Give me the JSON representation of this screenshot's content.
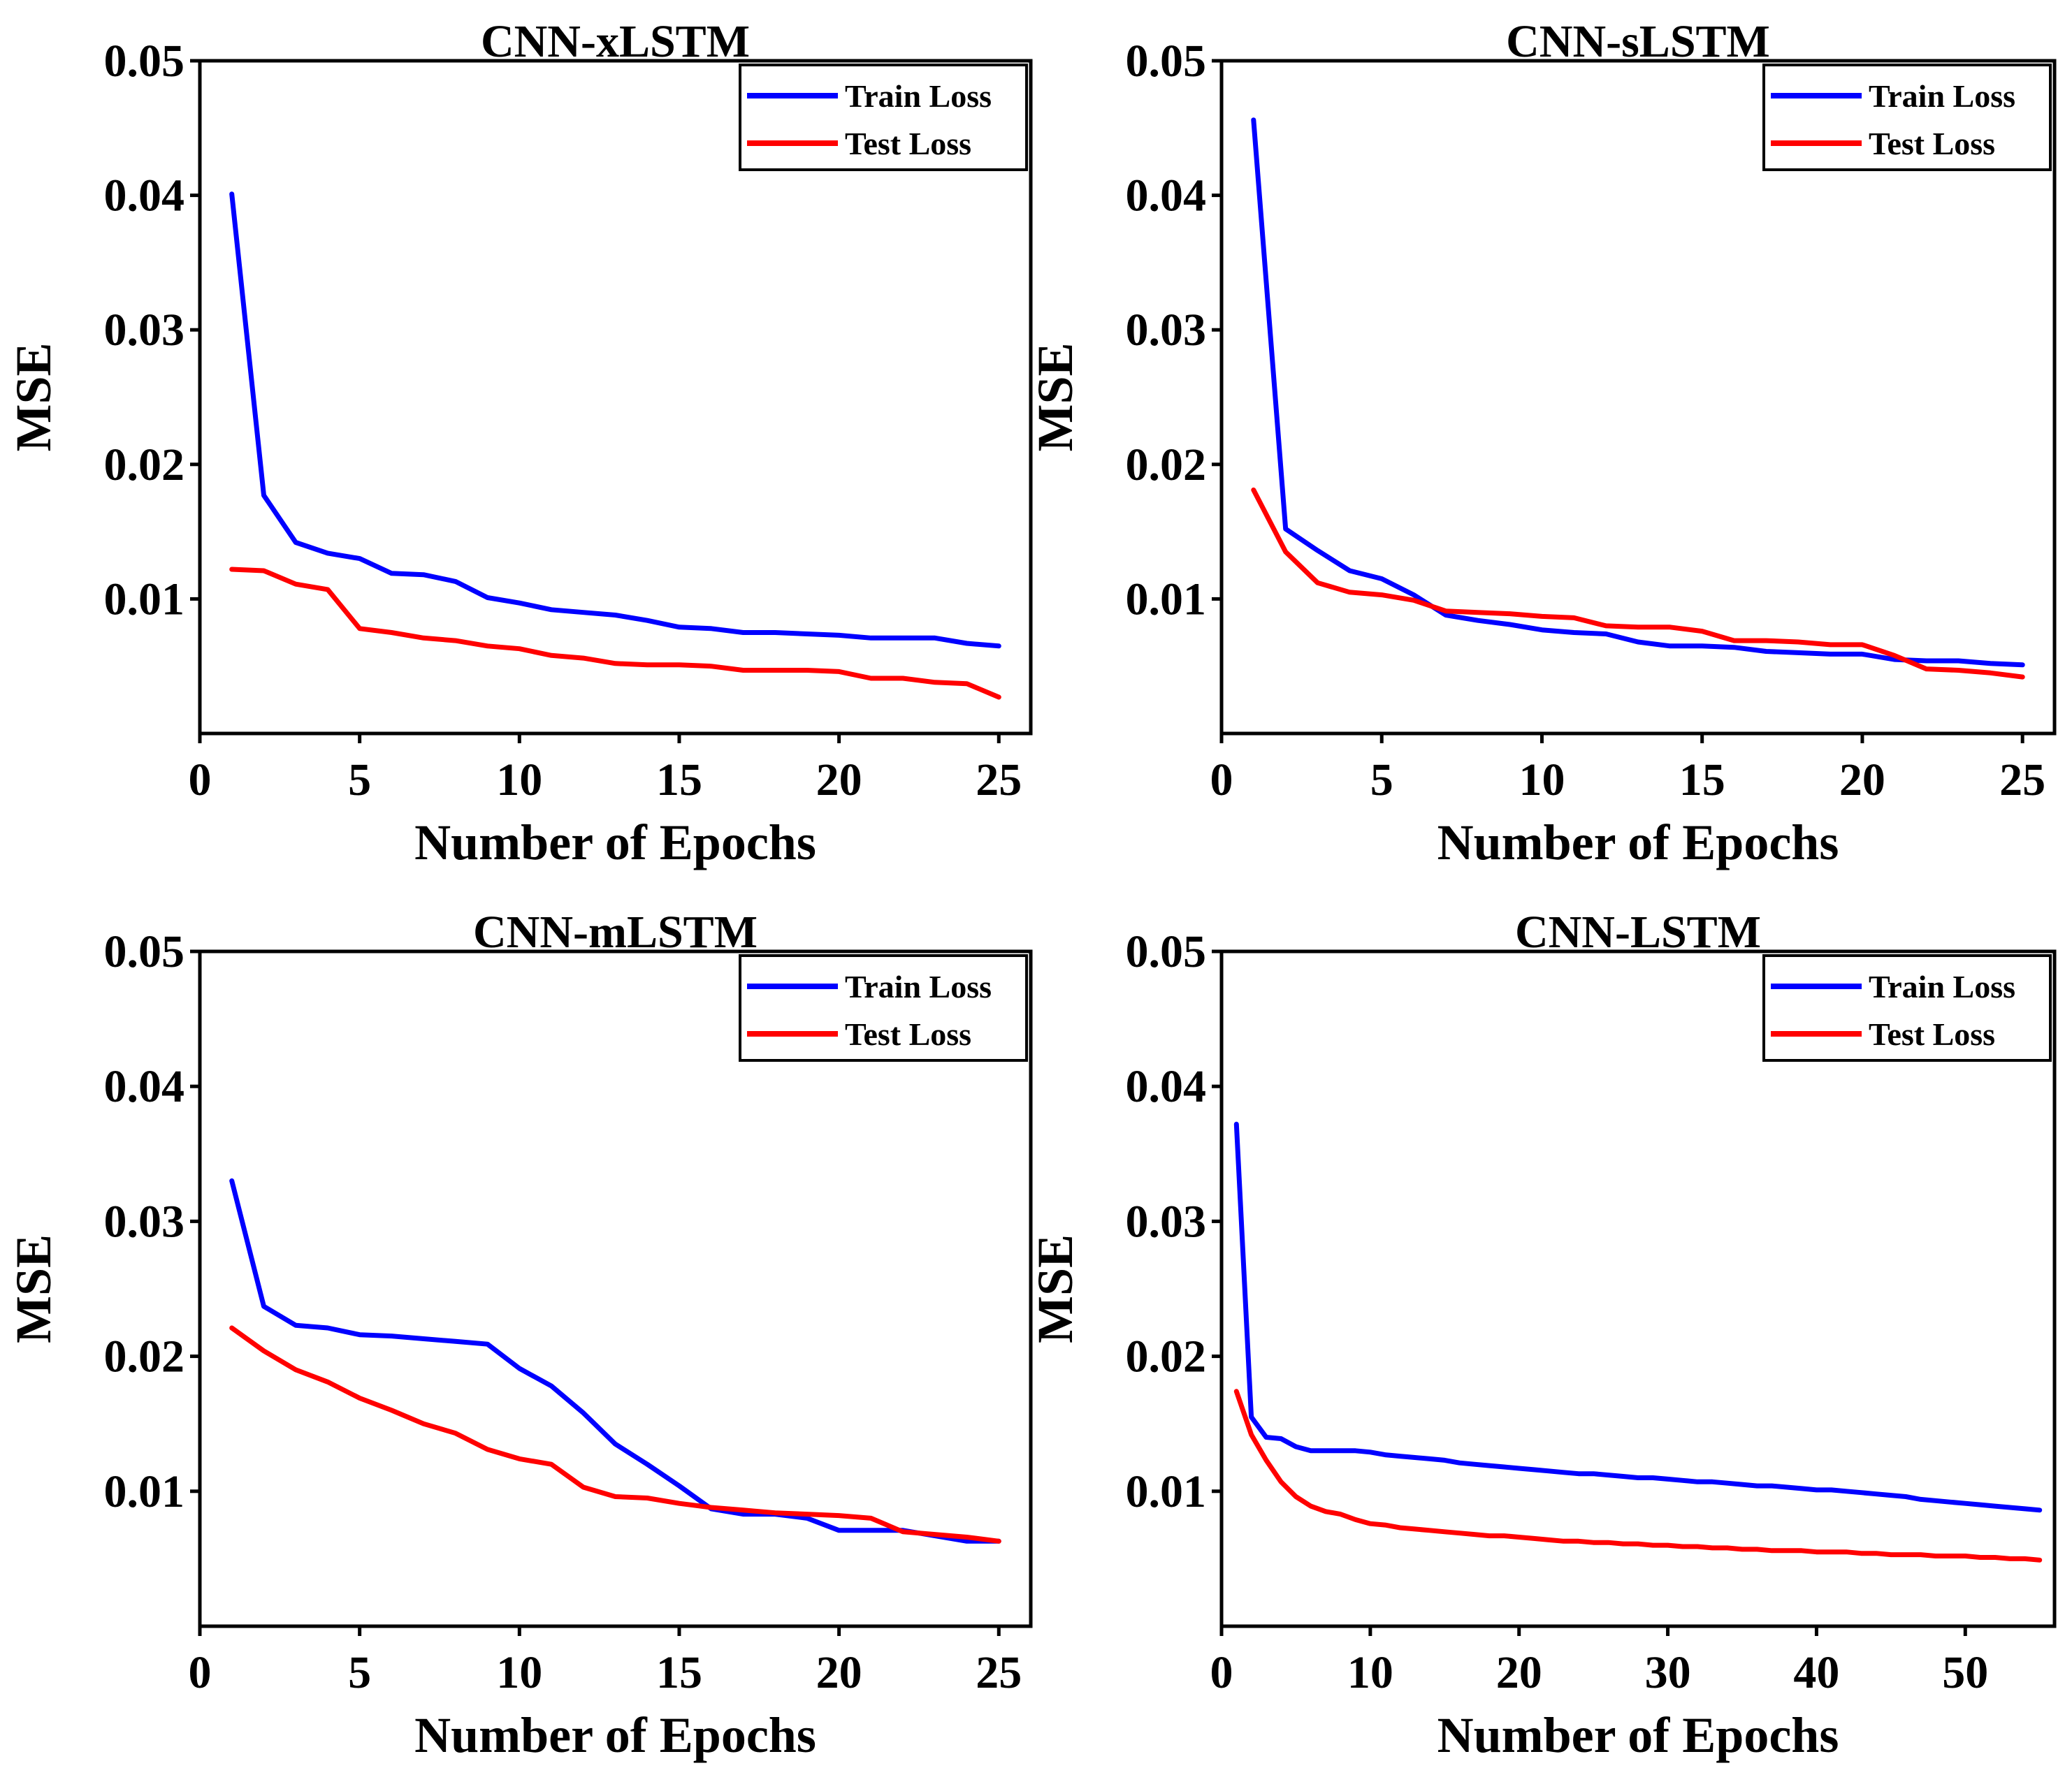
{
  "figure_title": "",
  "chart_data": [
    {
      "type": "line",
      "title": "CNN-xLSTM",
      "xlabel": "Number of Epochs",
      "ylabel": "MSE",
      "xlim": [
        0,
        26
      ],
      "ylim": [
        0,
        0.05
      ],
      "xticks": [
        0,
        5,
        10,
        15,
        20,
        25
      ],
      "yticks": [
        0.01,
        0.02,
        0.03,
        0.04,
        0.05
      ],
      "ytick_labels": [
        "0.01",
        "0.02",
        "0.03",
        "0.04",
        "0.05"
      ],
      "legend": "top-right",
      "grid": false,
      "x": [
        1,
        2,
        3,
        4,
        5,
        6,
        7,
        8,
        9,
        10,
        11,
        12,
        13,
        14,
        15,
        16,
        17,
        18,
        19,
        20,
        21,
        22,
        23,
        24,
        25
      ],
      "series": [
        {
          "name": "Train Loss",
          "color": "#0000ff",
          "values": [
            0.0401,
            0.0177,
            0.0142,
            0.0134,
            0.013,
            0.0119,
            0.0118,
            0.0113,
            0.0101,
            0.0097,
            0.0092,
            0.009,
            0.0088,
            0.0084,
            0.0079,
            0.0078,
            0.0075,
            0.0075,
            0.0074,
            0.0073,
            0.0071,
            0.0071,
            0.0071,
            0.0067,
            0.0065
          ]
        },
        {
          "name": "Test Loss",
          "color": "#ff0000",
          "values": [
            0.0122,
            0.0121,
            0.0111,
            0.0107,
            0.0078,
            0.0075,
            0.0071,
            0.0069,
            0.0065,
            0.0063,
            0.0058,
            0.0056,
            0.0052,
            0.0051,
            0.0051,
            0.005,
            0.0047,
            0.0047,
            0.0047,
            0.0046,
            0.0041,
            0.0041,
            0.0038,
            0.0037,
            0.0027
          ]
        }
      ]
    },
    {
      "type": "line",
      "title": "CNN-sLSTM",
      "xlabel": "Number of Epochs",
      "ylabel": "MSE",
      "xlim": [
        0,
        26
      ],
      "ylim": [
        0,
        0.05
      ],
      "xticks": [
        0,
        5,
        10,
        15,
        20,
        25
      ],
      "yticks": [
        0.01,
        0.02,
        0.03,
        0.04,
        0.05
      ],
      "ytick_labels": [
        "0.01",
        "0.02",
        "0.03",
        "0.04",
        "0.05"
      ],
      "legend": "top-right",
      "grid": false,
      "x": [
        1,
        2,
        3,
        4,
        5,
        6,
        7,
        8,
        9,
        10,
        11,
        12,
        13,
        14,
        15,
        16,
        17,
        18,
        19,
        20,
        21,
        22,
        23,
        24,
        25
      ],
      "series": [
        {
          "name": "Train Loss",
          "color": "#0000ff",
          "values": [
            0.0456,
            0.0152,
            0.0136,
            0.0121,
            0.0115,
            0.0103,
            0.0088,
            0.0084,
            0.0081,
            0.0077,
            0.0075,
            0.0074,
            0.0068,
            0.0065,
            0.0065,
            0.0064,
            0.0061,
            0.006,
            0.0059,
            0.0059,
            0.0055,
            0.0054,
            0.0054,
            0.0052,
            0.0051
          ]
        },
        {
          "name": "Test Loss",
          "color": "#ff0000",
          "values": [
            0.0181,
            0.0135,
            0.0112,
            0.0105,
            0.0103,
            0.0099,
            0.0091,
            0.009,
            0.0089,
            0.0087,
            0.0086,
            0.008,
            0.0079,
            0.0079,
            0.0076,
            0.0069,
            0.0069,
            0.0068,
            0.0066,
            0.0066,
            0.0058,
            0.0048,
            0.0047,
            0.0045,
            0.0042
          ]
        }
      ]
    },
    {
      "type": "line",
      "title": "CNN-mLSTM",
      "xlabel": "Number of Epochs",
      "ylabel": "MSE",
      "xlim": [
        0,
        26
      ],
      "ylim": [
        0,
        0.05
      ],
      "xticks": [
        0,
        5,
        10,
        15,
        20,
        25
      ],
      "yticks": [
        0.01,
        0.02,
        0.03,
        0.04,
        0.05
      ],
      "ytick_labels": [
        "0.01",
        "0.02",
        "0.03",
        "0.04",
        "0.05"
      ],
      "legend": "top-right",
      "grid": false,
      "x": [
        1,
        2,
        3,
        4,
        5,
        6,
        7,
        8,
        9,
        10,
        11,
        12,
        13,
        14,
        15,
        16,
        17,
        18,
        19,
        20,
        21,
        22,
        23,
        24,
        25
      ],
      "series": [
        {
          "name": "Train Loss",
          "color": "#0000ff",
          "values": [
            0.033,
            0.0237,
            0.0223,
            0.0221,
            0.0216,
            0.0215,
            0.0213,
            0.0211,
            0.0209,
            0.0191,
            0.0178,
            0.0158,
            0.0135,
            0.012,
            0.0104,
            0.0087,
            0.0083,
            0.0083,
            0.008,
            0.0071,
            0.0071,
            0.0071,
            0.0067,
            0.0063,
            0.0063
          ]
        },
        {
          "name": "Test Loss",
          "color": "#ff0000",
          "values": [
            0.0221,
            0.0204,
            0.019,
            0.0181,
            0.0169,
            0.016,
            0.015,
            0.0143,
            0.0131,
            0.0124,
            0.012,
            0.0103,
            0.0096,
            0.0095,
            0.0091,
            0.0088,
            0.0086,
            0.0084,
            0.0083,
            0.0082,
            0.008,
            0.007,
            0.0068,
            0.0066,
            0.0063
          ]
        }
      ]
    },
    {
      "type": "line",
      "title": "CNN-LSTM",
      "xlabel": "Number of Epochs",
      "ylabel": "MSE",
      "xlim": [
        0,
        56
      ],
      "ylim": [
        0,
        0.05
      ],
      "xticks": [
        0,
        10,
        20,
        30,
        40,
        50
      ],
      "yticks": [
        0.01,
        0.02,
        0.03,
        0.04,
        0.05
      ],
      "ytick_labels": [
        "0.01",
        "0.02",
        "0.03",
        "0.04",
        "0.05"
      ],
      "legend": "top-right",
      "grid": false,
      "x": [
        1,
        2,
        3,
        4,
        5,
        6,
        7,
        8,
        9,
        10,
        11,
        12,
        13,
        14,
        15,
        16,
        17,
        18,
        19,
        20,
        21,
        22,
        23,
        24,
        25,
        26,
        27,
        28,
        29,
        30,
        31,
        32,
        33,
        34,
        35,
        36,
        37,
        38,
        39,
        40,
        41,
        42,
        43,
        44,
        45,
        46,
        47,
        48,
        49,
        50,
        51,
        52,
        53,
        54,
        55
      ],
      "series": [
        {
          "name": "Train Loss",
          "color": "#0000ff",
          "values": [
            0.0372,
            0.0155,
            0.014,
            0.0139,
            0.0133,
            0.013,
            0.013,
            0.013,
            0.013,
            0.0129,
            0.0127,
            0.0126,
            0.0125,
            0.0124,
            0.0123,
            0.0121,
            0.012,
            0.0119,
            0.0118,
            0.0117,
            0.0116,
            0.0115,
            0.0114,
            0.0113,
            0.0113,
            0.0112,
            0.0111,
            0.011,
            0.011,
            0.0109,
            0.0108,
            0.0107,
            0.0107,
            0.0106,
            0.0105,
            0.0104,
            0.0104,
            0.0103,
            0.0102,
            0.0101,
            0.0101,
            0.01,
            0.0099,
            0.0098,
            0.0097,
            0.0096,
            0.0094,
            0.0093,
            0.0092,
            0.0091,
            0.009,
            0.0089,
            0.0088,
            0.0087,
            0.0086
          ]
        },
        {
          "name": "Test Loss",
          "color": "#ff0000",
          "values": [
            0.0174,
            0.0142,
            0.0123,
            0.0107,
            0.0096,
            0.0089,
            0.0085,
            0.0083,
            0.0079,
            0.0076,
            0.0075,
            0.0073,
            0.0072,
            0.0071,
            0.007,
            0.0069,
            0.0068,
            0.0067,
            0.0067,
            0.0066,
            0.0065,
            0.0064,
            0.0063,
            0.0063,
            0.0062,
            0.0062,
            0.0061,
            0.0061,
            0.006,
            0.006,
            0.0059,
            0.0059,
            0.0058,
            0.0058,
            0.0057,
            0.0057,
            0.0056,
            0.0056,
            0.0056,
            0.0055,
            0.0055,
            0.0055,
            0.0054,
            0.0054,
            0.0053,
            0.0053,
            0.0053,
            0.0052,
            0.0052,
            0.0052,
            0.0051,
            0.0051,
            0.005,
            0.005,
            0.0049
          ]
        }
      ]
    }
  ]
}
